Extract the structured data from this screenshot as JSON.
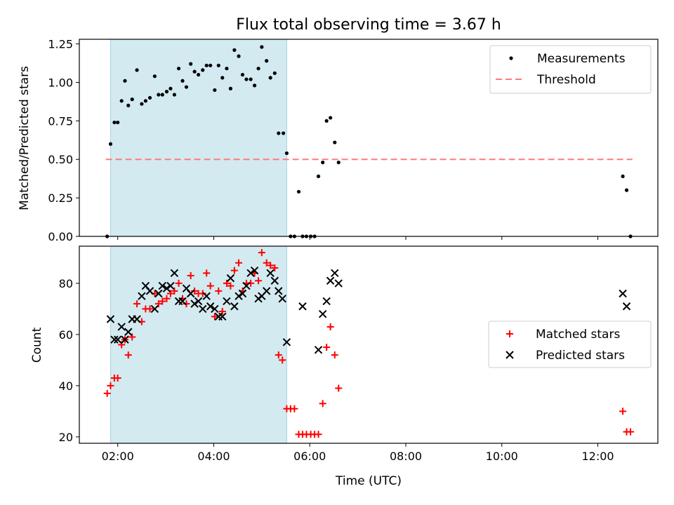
{
  "chart_data": [
    {
      "type": "scatter",
      "title": "Flux total observing time = 3.67 h",
      "xlabel": "",
      "ylabel": "Matched/Predicted stars",
      "xlim_hours": [
        1.2,
        13.25
      ],
      "ylim": [
        0,
        1.28
      ],
      "yticks": [
        0.0,
        0.25,
        0.5,
        0.75,
        1.0,
        1.25
      ],
      "ytick_labels": [
        "0.00",
        "0.25",
        "0.50",
        "0.75",
        "1.00",
        "1.25"
      ],
      "shaded_interval_hours": [
        1.85,
        5.52
      ],
      "shade_color": "#d3eaf1",
      "legend_position": "top-right",
      "series": [
        {
          "name": "Measurements",
          "marker": "dot",
          "color": "#000000",
          "points": [
            [
              1.78,
              0.0
            ],
            [
              1.85,
              0.6
            ],
            [
              1.93,
              0.74
            ],
            [
              2.0,
              0.74
            ],
            [
              2.08,
              0.88
            ],
            [
              2.15,
              1.01
            ],
            [
              2.22,
              0.85
            ],
            [
              2.3,
              0.89
            ],
            [
              2.4,
              1.08
            ],
            [
              2.5,
              0.86
            ],
            [
              2.58,
              0.88
            ],
            [
              2.67,
              0.9
            ],
            [
              2.77,
              1.04
            ],
            [
              2.85,
              0.92
            ],
            [
              2.93,
              0.92
            ],
            [
              3.02,
              0.94
            ],
            [
              3.1,
              0.96
            ],
            [
              3.18,
              0.92
            ],
            [
              3.27,
              1.09
            ],
            [
              3.35,
              1.01
            ],
            [
              3.43,
              0.97
            ],
            [
              3.52,
              1.12
            ],
            [
              3.6,
              1.07
            ],
            [
              3.68,
              1.05
            ],
            [
              3.77,
              1.08
            ],
            [
              3.85,
              1.11
            ],
            [
              3.93,
              1.11
            ],
            [
              4.02,
              0.95
            ],
            [
              4.1,
              1.11
            ],
            [
              4.18,
              1.03
            ],
            [
              4.27,
              1.09
            ],
            [
              4.35,
              0.96
            ],
            [
              4.43,
              1.21
            ],
            [
              4.52,
              1.17
            ],
            [
              4.6,
              1.05
            ],
            [
              4.68,
              1.02
            ],
            [
              4.77,
              1.02
            ],
            [
              4.85,
              0.98
            ],
            [
              4.93,
              1.09
            ],
            [
              5.0,
              1.23
            ],
            [
              5.1,
              1.14
            ],
            [
              5.18,
              1.03
            ],
            [
              5.27,
              1.06
            ],
            [
              5.35,
              0.67
            ],
            [
              5.45,
              0.67
            ],
            [
              5.52,
              0.54
            ],
            [
              5.6,
              0.0
            ],
            [
              5.68,
              0.0
            ],
            [
              5.77,
              0.29
            ],
            [
              5.85,
              0.0
            ],
            [
              5.93,
              0.0
            ],
            [
              6.02,
              0.0
            ],
            [
              6.1,
              0.0
            ],
            [
              6.18,
              0.39
            ],
            [
              6.27,
              0.48
            ],
            [
              6.35,
              0.75
            ],
            [
              6.43,
              0.77
            ],
            [
              6.52,
              0.61
            ],
            [
              6.6,
              0.48
            ],
            [
              12.52,
              0.39
            ],
            [
              12.6,
              0.3
            ],
            [
              12.68,
              0.0
            ]
          ]
        },
        {
          "name": "Threshold",
          "marker": "dashed-line",
          "color": "#ff7b7b",
          "points": [
            [
              1.75,
              0.5
            ],
            [
              12.72,
              0.5
            ]
          ]
        }
      ]
    },
    {
      "type": "scatter",
      "title": "",
      "xlabel": "Time (UTC)",
      "ylabel": "Count",
      "xlim_hours": [
        1.2,
        13.25
      ],
      "ylim": [
        17.5,
        94.5
      ],
      "yticks": [
        20,
        40,
        60,
        80
      ],
      "ytick_labels": [
        "20",
        "40",
        "60",
        "80"
      ],
      "xticks_hours": [
        2,
        4,
        6,
        8,
        10,
        12
      ],
      "xtick_labels": [
        "02:00",
        "04:00",
        "06:00",
        "08:00",
        "10:00",
        "12:00"
      ],
      "shaded_interval_hours": [
        1.85,
        5.52
      ],
      "shade_color": "#d3eaf1",
      "legend_position": "center-right",
      "series": [
        {
          "name": "Matched stars",
          "marker": "plus",
          "color": "#ff0000",
          "points": [
            [
              1.78,
              37
            ],
            [
              1.85,
              40
            ],
            [
              1.93,
              43
            ],
            [
              2.0,
              43
            ],
            [
              2.08,
              56
            ],
            [
              2.15,
              58
            ],
            [
              2.22,
              52
            ],
            [
              2.3,
              59
            ],
            [
              2.4,
              72
            ],
            [
              2.5,
              65
            ],
            [
              2.58,
              70
            ],
            [
              2.67,
              70
            ],
            [
              2.77,
              76
            ],
            [
              2.85,
              72
            ],
            [
              2.93,
              73
            ],
            [
              3.02,
              74
            ],
            [
              3.1,
              76
            ],
            [
              3.18,
              77
            ],
            [
              3.27,
              80
            ],
            [
              3.35,
              74
            ],
            [
              3.43,
              72
            ],
            [
              3.52,
              83
            ],
            [
              3.6,
              77
            ],
            [
              3.68,
              76
            ],
            [
              3.77,
              76
            ],
            [
              3.85,
              84
            ],
            [
              3.93,
              79
            ],
            [
              4.02,
              67
            ],
            [
              4.1,
              77
            ],
            [
              4.18,
              69
            ],
            [
              4.27,
              80
            ],
            [
              4.35,
              79
            ],
            [
              4.43,
              85
            ],
            [
              4.52,
              88
            ],
            [
              4.6,
              77
            ],
            [
              4.68,
              80
            ],
            [
              4.77,
              80
            ],
            [
              4.85,
              84
            ],
            [
              4.93,
              81
            ],
            [
              5.0,
              92
            ],
            [
              5.1,
              88
            ],
            [
              5.18,
              87
            ],
            [
              5.27,
              86
            ],
            [
              5.35,
              52
            ],
            [
              5.43,
              50
            ],
            [
              5.52,
              31
            ],
            [
              5.6,
              31
            ],
            [
              5.68,
              31
            ],
            [
              5.77,
              21
            ],
            [
              5.85,
              21
            ],
            [
              5.93,
              21
            ],
            [
              6.02,
              21
            ],
            [
              6.1,
              21
            ],
            [
              6.18,
              21
            ],
            [
              6.27,
              33
            ],
            [
              6.35,
              55
            ],
            [
              6.43,
              63
            ],
            [
              6.52,
              52
            ],
            [
              6.6,
              39
            ],
            [
              12.52,
              30
            ],
            [
              12.6,
              22
            ],
            [
              12.68,
              22
            ]
          ]
        },
        {
          "name": "Predicted stars",
          "marker": "x",
          "color": "#000000",
          "points": [
            [
              1.85,
              66
            ],
            [
              1.93,
              58
            ],
            [
              2.0,
              58
            ],
            [
              2.08,
              63
            ],
            [
              2.15,
              58
            ],
            [
              2.22,
              61
            ],
            [
              2.3,
              66
            ],
            [
              2.4,
              66
            ],
            [
              2.5,
              75
            ],
            [
              2.58,
              79
            ],
            [
              2.67,
              77
            ],
            [
              2.77,
              70
            ],
            [
              2.85,
              76
            ],
            [
              2.93,
              79
            ],
            [
              3.02,
              78
            ],
            [
              3.1,
              79
            ],
            [
              3.18,
              84
            ],
            [
              3.27,
              73
            ],
            [
              3.35,
              73
            ],
            [
              3.43,
              78
            ],
            [
              3.52,
              76
            ],
            [
              3.6,
              72
            ],
            [
              3.68,
              73
            ],
            [
              3.77,
              70
            ],
            [
              3.85,
              75
            ],
            [
              3.93,
              71
            ],
            [
              4.02,
              70
            ],
            [
              4.1,
              67
            ],
            [
              4.18,
              67
            ],
            [
              4.27,
              73
            ],
            [
              4.35,
              82
            ],
            [
              4.43,
              71
            ],
            [
              4.52,
              75
            ],
            [
              4.6,
              76
            ],
            [
              4.68,
              79
            ],
            [
              4.77,
              84
            ],
            [
              4.85,
              85
            ],
            [
              4.93,
              74
            ],
            [
              5.0,
              75
            ],
            [
              5.1,
              77
            ],
            [
              5.18,
              84
            ],
            [
              5.27,
              81
            ],
            [
              5.35,
              77
            ],
            [
              5.43,
              74
            ],
            [
              5.52,
              57
            ],
            [
              5.85,
              71
            ],
            [
              6.18,
              54
            ],
            [
              6.27,
              68
            ],
            [
              6.35,
              73
            ],
            [
              6.43,
              81
            ],
            [
              6.52,
              84
            ],
            [
              6.6,
              80
            ],
            [
              12.52,
              76
            ],
            [
              12.6,
              71
            ]
          ]
        }
      ]
    }
  ]
}
